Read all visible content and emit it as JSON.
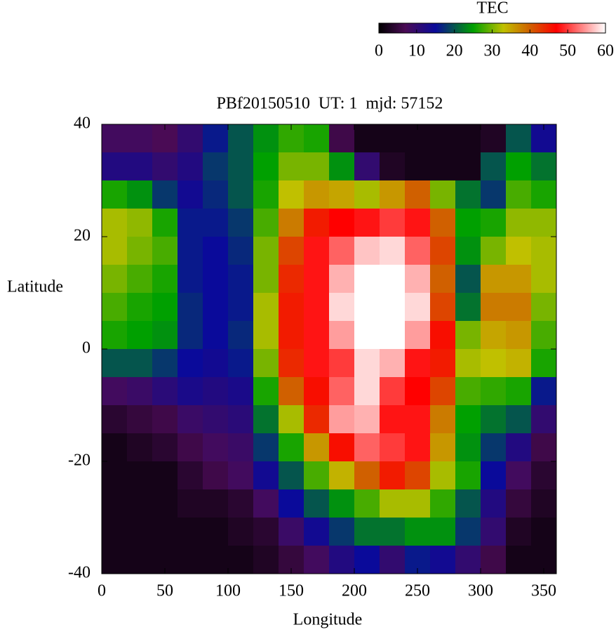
{
  "chart_data": {
    "type": "heatmap",
    "title": "PBf20150510  UT: 1  mjd: 57152",
    "xlabel": "Longitude",
    "ylabel": "Latitude",
    "colorbar_label": "TEC",
    "xlim": [
      0,
      360
    ],
    "ylim": [
      -40,
      40
    ],
    "xticks": [
      0,
      50,
      100,
      150,
      200,
      250,
      300,
      350
    ],
    "yticks": [
      -40,
      -20,
      0,
      20,
      40
    ],
    "clim": [
      0,
      60
    ],
    "cticks": [
      0,
      10,
      20,
      30,
      40,
      50,
      60
    ],
    "colorscale": [
      [
        0,
        "#000000"
      ],
      [
        7,
        "#4a0b55"
      ],
      [
        15,
        "#0a0a9a"
      ],
      [
        25,
        "#00a000"
      ],
      [
        33,
        "#c0c000"
      ],
      [
        40,
        "#d06000"
      ],
      [
        47,
        "#ff0000"
      ],
      [
        60,
        "#ffffff"
      ]
    ],
    "x": [
      10,
      30,
      50,
      70,
      90,
      110,
      130,
      150,
      170,
      190,
      210,
      230,
      250,
      270,
      290,
      310,
      330,
      350
    ],
    "y": [
      37.5,
      32.5,
      27.5,
      22.5,
      17.5,
      12.5,
      7.5,
      2.5,
      -2.5,
      -7.5,
      -12.5,
      -17.5,
      -22.5,
      -27.5,
      -32.5,
      -37.5
    ],
    "z": [
      [
        8,
        8,
        7,
        10,
        16,
        20,
        24,
        27,
        26,
        6,
        2,
        2,
        2,
        2,
        2,
        3,
        20,
        14
      ],
      [
        12,
        12,
        10,
        12,
        18,
        20,
        25,
        30,
        30,
        24,
        10,
        3,
        2,
        2,
        2,
        20,
        25,
        22
      ],
      [
        26,
        24,
        18,
        14,
        17,
        20,
        26,
        33,
        36,
        35,
        32,
        36,
        40,
        30,
        22,
        18,
        28,
        26
      ],
      [
        32,
        31,
        26,
        16,
        16,
        18,
        28,
        38,
        45,
        47,
        48,
        50,
        48,
        40,
        25,
        26,
        31,
        31
      ],
      [
        32,
        30,
        28,
        16,
        15,
        17,
        30,
        42,
        48,
        52,
        57,
        58,
        52,
        42,
        24,
        30,
        33,
        32
      ],
      [
        30,
        28,
        26,
        16,
        15,
        16,
        30,
        44,
        48,
        56,
        60,
        60,
        56,
        40,
        20,
        36,
        36,
        32
      ],
      [
        28,
        26,
        25,
        17,
        15,
        16,
        32,
        45,
        48,
        58,
        60,
        60,
        58,
        42,
        22,
        38,
        38,
        30
      ],
      [
        26,
        25,
        24,
        17,
        15,
        17,
        32,
        45,
        48,
        55,
        60,
        60,
        55,
        46,
        30,
        35,
        36,
        28
      ],
      [
        20,
        20,
        18,
        15,
        14,
        16,
        30,
        44,
        48,
        50,
        58,
        56,
        48,
        45,
        32,
        33,
        34,
        26
      ],
      [
        8,
        9,
        11,
        13,
        12,
        13,
        26,
        40,
        46,
        52,
        58,
        50,
        47,
        42,
        28,
        27,
        26,
        16
      ],
      [
        4,
        5,
        6,
        9,
        10,
        11,
        22,
        32,
        44,
        55,
        56,
        48,
        48,
        38,
        25,
        22,
        20,
        10
      ],
      [
        2,
        3,
        4,
        6,
        8,
        9,
        18,
        26,
        36,
        46,
        52,
        50,
        48,
        36,
        24,
        18,
        12,
        6
      ],
      [
        2,
        2,
        2,
        4,
        6,
        8,
        14,
        20,
        28,
        34,
        40,
        45,
        42,
        32,
        26,
        15,
        8,
        4
      ],
      [
        2,
        2,
        2,
        3,
        3,
        4,
        8,
        15,
        20,
        24,
        28,
        32,
        32,
        27,
        20,
        12,
        5,
        3
      ],
      [
        2,
        2,
        2,
        2,
        2,
        3,
        4,
        9,
        14,
        18,
        22,
        22,
        24,
        24,
        18,
        10,
        3,
        2
      ],
      [
        2,
        2,
        2,
        2,
        2,
        2,
        3,
        5,
        8,
        12,
        15,
        10,
        16,
        14,
        10,
        6,
        2,
        2
      ]
    ]
  }
}
